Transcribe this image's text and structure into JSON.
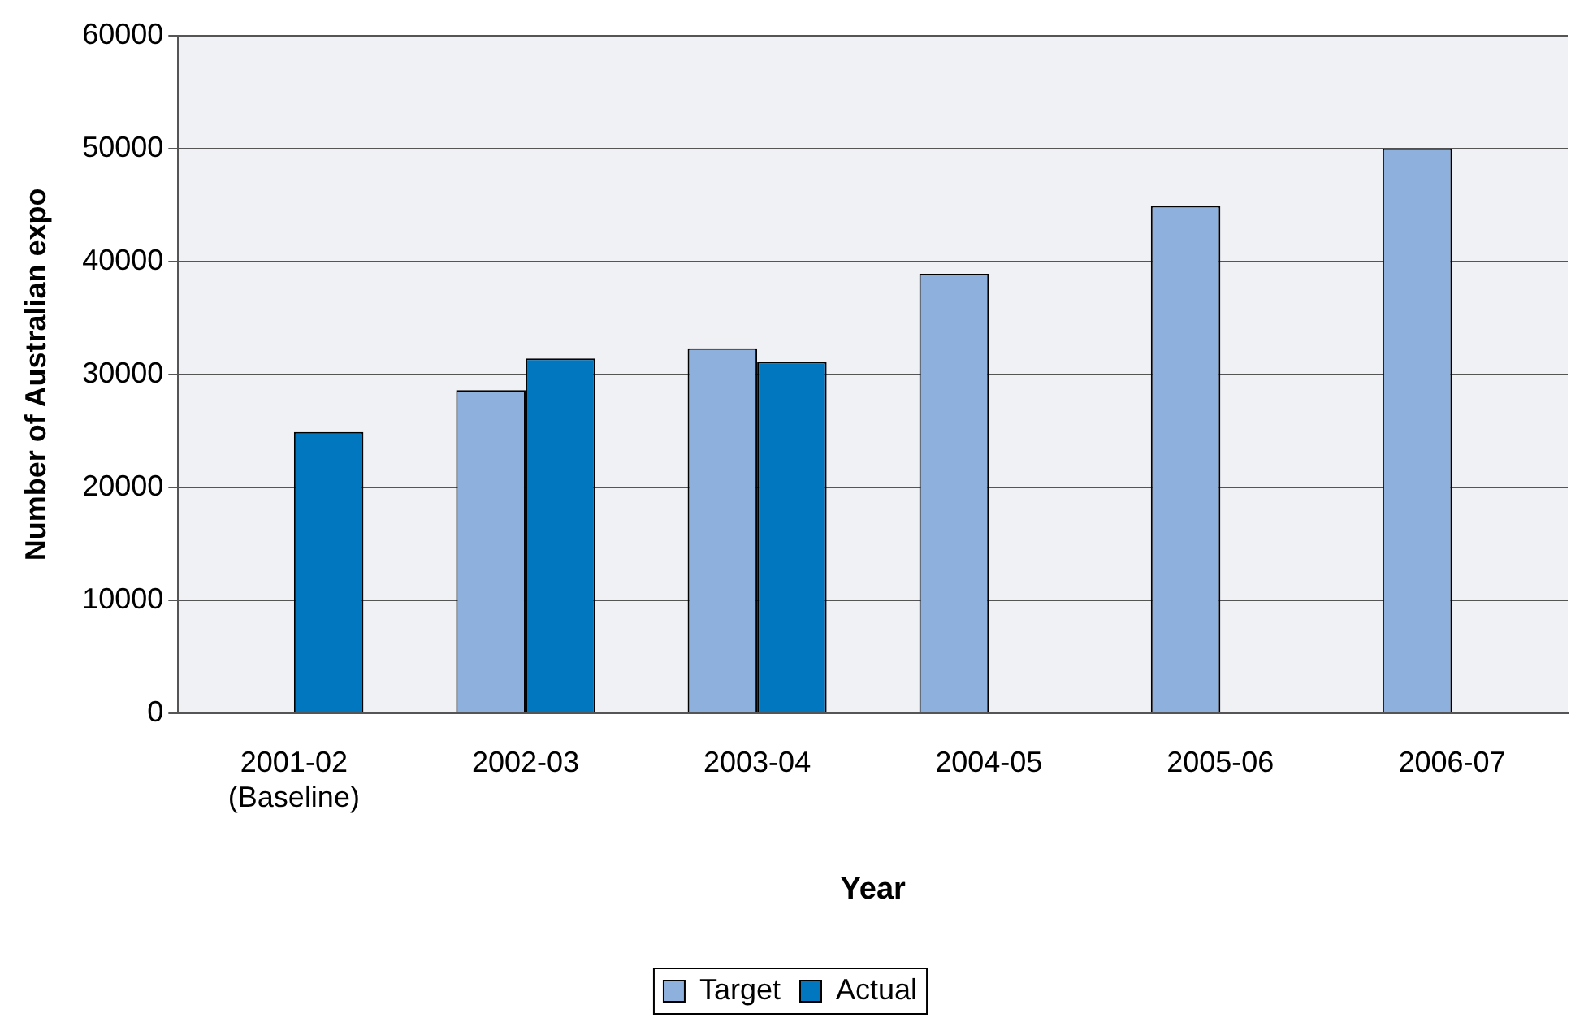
{
  "chart_data": {
    "type": "bar",
    "xlabel": "Year",
    "ylabel": "Number of Australian expo",
    "categories": [
      "2001-02\n(Baseline)",
      "2002-03",
      "2003-04",
      "2004-05",
      "2005-06",
      "2006-07"
    ],
    "series": [
      {
        "name": "Target",
        "color": "#8eb0dc",
        "values": [
          null,
          28600,
          32300,
          38900,
          44900,
          50000
        ]
      },
      {
        "name": "Actual",
        "color": "#0077bf",
        "values": [
          24900,
          31400,
          31100,
          null,
          null,
          null
        ]
      }
    ],
    "ylim": [
      0,
      60000
    ],
    "yticks": [
      0,
      10000,
      20000,
      30000,
      40000,
      50000,
      60000
    ],
    "grid": "y",
    "legend": "bottom"
  }
}
